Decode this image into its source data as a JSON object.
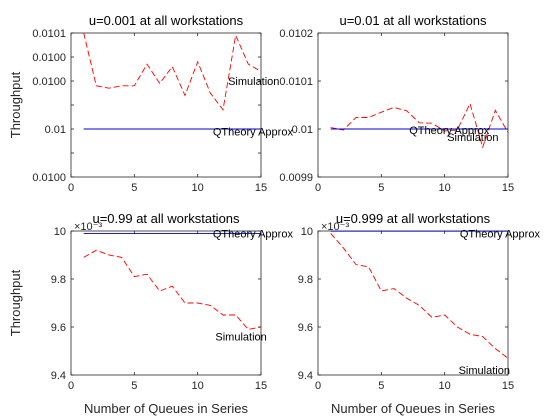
{
  "figure": {
    "ylabel": "Throughput",
    "xlabel": "Number of Queues in Series"
  },
  "chart_data": [
    {
      "type": "line",
      "title": "u=0.001 at all workstations",
      "xlabel": "",
      "ylabel": "Throughput",
      "xlim": [
        0,
        15
      ],
      "ylim": [
        0.00998,
        0.01004
      ],
      "xticks": [
        0,
        5,
        10,
        15
      ],
      "xtick_labels": [
        "0",
        "5",
        "10",
        "15"
      ],
      "yticks": [
        0.00998,
        0.00999,
        0.01,
        0.01001,
        0.01002,
        0.01003,
        0.01004
      ],
      "ytick_labels": [
        "0.0100",
        "",
        "0.01",
        "",
        "0.0100",
        "0.0100",
        "0.0101"
      ],
      "exponent_label": "",
      "series": [
        {
          "name": "Simulation",
          "style": "dashed",
          "color": "#ff0000",
          "x": [
            1,
            2,
            3,
            4,
            5,
            6,
            7,
            8,
            9,
            10,
            11,
            12,
            13,
            14,
            15
          ],
          "y": [
            0.01004,
            0.010018,
            0.010017,
            0.010018,
            0.010018,
            0.010027,
            0.010019,
            0.010026,
            0.010014,
            0.010028,
            0.010015,
            0.010008,
            0.010039,
            0.010027,
            0.010024
          ]
        },
        {
          "name": "QTheory Approx",
          "style": "solid",
          "color": "#0000cc",
          "x": [
            1,
            15
          ],
          "y": [
            0.01,
            0.01
          ]
        }
      ],
      "annotations": [
        {
          "text": "Simulation",
          "x": 12.4,
          "y": 0.01002
        },
        {
          "text": "QTheory Approx",
          "x": 11.2,
          "y": 0.009999
        }
      ]
    },
    {
      "type": "line",
      "title": "u=0.01 at all workstations",
      "xlabel": "",
      "ylabel": "",
      "xlim": [
        0,
        15
      ],
      "ylim": [
        0.0099,
        0.0102
      ],
      "xticks": [
        0,
        5,
        10,
        15
      ],
      "xtick_labels": [
        "0",
        "5",
        "10",
        "15"
      ],
      "yticks": [
        0.0099,
        0.01,
        0.0101,
        0.0102
      ],
      "ytick_labels": [
        "0.0099",
        "0.01",
        "0.0101",
        "0.0102"
      ],
      "exponent_label": "",
      "series": [
        {
          "name": "Simulation",
          "style": "dashed",
          "color": "#ff0000",
          "x": [
            1,
            2,
            3,
            4,
            5,
            6,
            7,
            8,
            9,
            10,
            11,
            12,
            13,
            14,
            15
          ],
          "y": [
            0.010003,
            0.009998,
            0.010024,
            0.010024,
            0.010035,
            0.010045,
            0.010038,
            0.010013,
            0.010012,
            0.009996,
            0.009998,
            0.010053,
            0.009962,
            0.010039,
            0.009993
          ]
        },
        {
          "name": "QTheory Approx",
          "style": "solid",
          "color": "#0000cc",
          "x": [
            1,
            15
          ],
          "y": [
            0.01,
            0.01
          ]
        }
      ],
      "annotations": [
        {
          "text": "QTheory Approx",
          "x": 7.2,
          "y": 0.009998
        },
        {
          "text": "Simulation",
          "x": 10.2,
          "y": 0.009983
        }
      ]
    },
    {
      "type": "line",
      "title": "u=0.99 at all workstations",
      "xlabel": "Number of Queues in Series",
      "ylabel": "Throughput",
      "xlim": [
        0,
        15
      ],
      "ylim": [
        9.4,
        10
      ],
      "xticks": [
        0,
        5,
        10,
        15
      ],
      "xtick_labels": [
        "0",
        "5",
        "10",
        "15"
      ],
      "yticks": [
        9.4,
        9.6,
        9.8,
        10
      ],
      "ytick_labels": [
        "9.4",
        "9.6",
        "9.8",
        "10"
      ],
      "exponent_label": "×10⁻³",
      "series": [
        {
          "name": "Simulation",
          "style": "dashed",
          "color": "#ff0000",
          "x": [
            1,
            2,
            3,
            4,
            5,
            6,
            7,
            8,
            9,
            10,
            11,
            12,
            13,
            14,
            15
          ],
          "y": [
            9.89,
            9.92,
            9.9,
            9.89,
            9.81,
            9.82,
            9.75,
            9.77,
            9.7,
            9.7,
            9.69,
            9.65,
            9.65,
            9.59,
            9.6
          ]
        },
        {
          "name": "QTheory Approx",
          "style": "solid",
          "color": "#0000cc",
          "x": [
            1,
            15
          ],
          "y": [
            9.99,
            9.99
          ]
        }
      ],
      "annotations": [
        {
          "text": "QTheory Approx",
          "x": 11.2,
          "y": 9.99
        },
        {
          "text": "Simulation",
          "x": 11.4,
          "y": 9.56
        }
      ]
    },
    {
      "type": "line",
      "title": "u=0.999 at all workstations",
      "xlabel": "Number of Queues in Series",
      "ylabel": "",
      "xlim": [
        0,
        15
      ],
      "ylim": [
        9.4,
        10
      ],
      "xticks": [
        0,
        5,
        10,
        15
      ],
      "xtick_labels": [
        "0",
        "5",
        "10",
        "15"
      ],
      "yticks": [
        9.4,
        9.6,
        9.8,
        10
      ],
      "ytick_labels": [
        "9.4",
        "9.6",
        "9.8",
        "10"
      ],
      "exponent_label": "×10⁻³",
      "series": [
        {
          "name": "Simulation",
          "style": "dashed",
          "color": "#ff0000",
          "x": [
            1,
            2,
            3,
            4,
            5,
            6,
            7,
            8,
            9,
            10,
            11,
            12,
            13,
            14,
            15
          ],
          "y": [
            9.99,
            9.93,
            9.86,
            9.85,
            9.75,
            9.76,
            9.72,
            9.69,
            9.64,
            9.65,
            9.6,
            9.57,
            9.56,
            9.51,
            9.47
          ]
        },
        {
          "name": "QTheory Approx",
          "style": "solid",
          "color": "#0000cc",
          "x": [
            1,
            15
          ],
          "y": [
            9.999,
            9.999
          ]
        }
      ],
      "annotations": [
        {
          "text": "QTheory Approx",
          "x": 11.2,
          "y": 9.99
        },
        {
          "text": "Simulation",
          "x": 11.1,
          "y": 9.42
        }
      ]
    }
  ]
}
